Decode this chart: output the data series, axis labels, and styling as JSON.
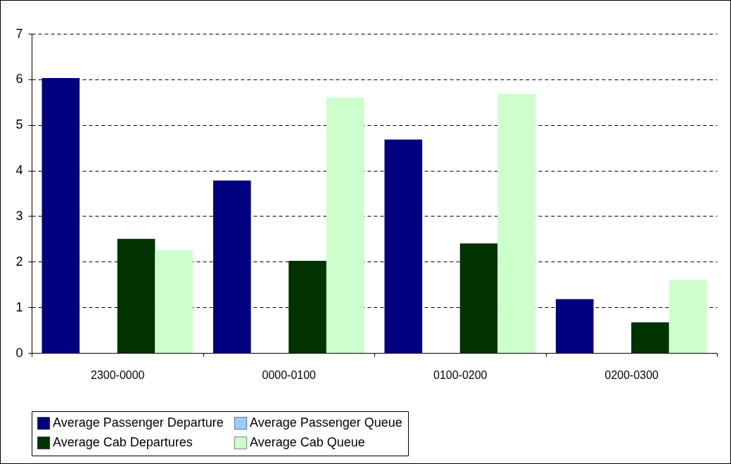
{
  "chart_data": {
    "type": "bar",
    "categories": [
      "2300-0000",
      "0000-0100",
      "0100-0200",
      "0200-0300"
    ],
    "series": [
      {
        "name": "Average Passenger Departure",
        "color": "#000080",
        "values": [
          6.03,
          3.78,
          4.68,
          1.18
        ]
      },
      {
        "name": "Average Passenger Queue",
        "color": "#99ccff",
        "values": [
          0,
          0,
          0,
          0
        ]
      },
      {
        "name": "Average Cab Departures",
        "color": "#003300",
        "values": [
          2.5,
          2.02,
          2.4,
          0.67
        ]
      },
      {
        "name": "Average Cab Queue",
        "color": "#ccffcc",
        "values": [
          2.25,
          5.6,
          5.68,
          1.6
        ]
      }
    ],
    "ylim": [
      0,
      7
    ],
    "yticks": [
      0,
      1,
      2,
      3,
      4,
      5,
      6,
      7
    ],
    "grid": "y",
    "legend": "bottom"
  }
}
